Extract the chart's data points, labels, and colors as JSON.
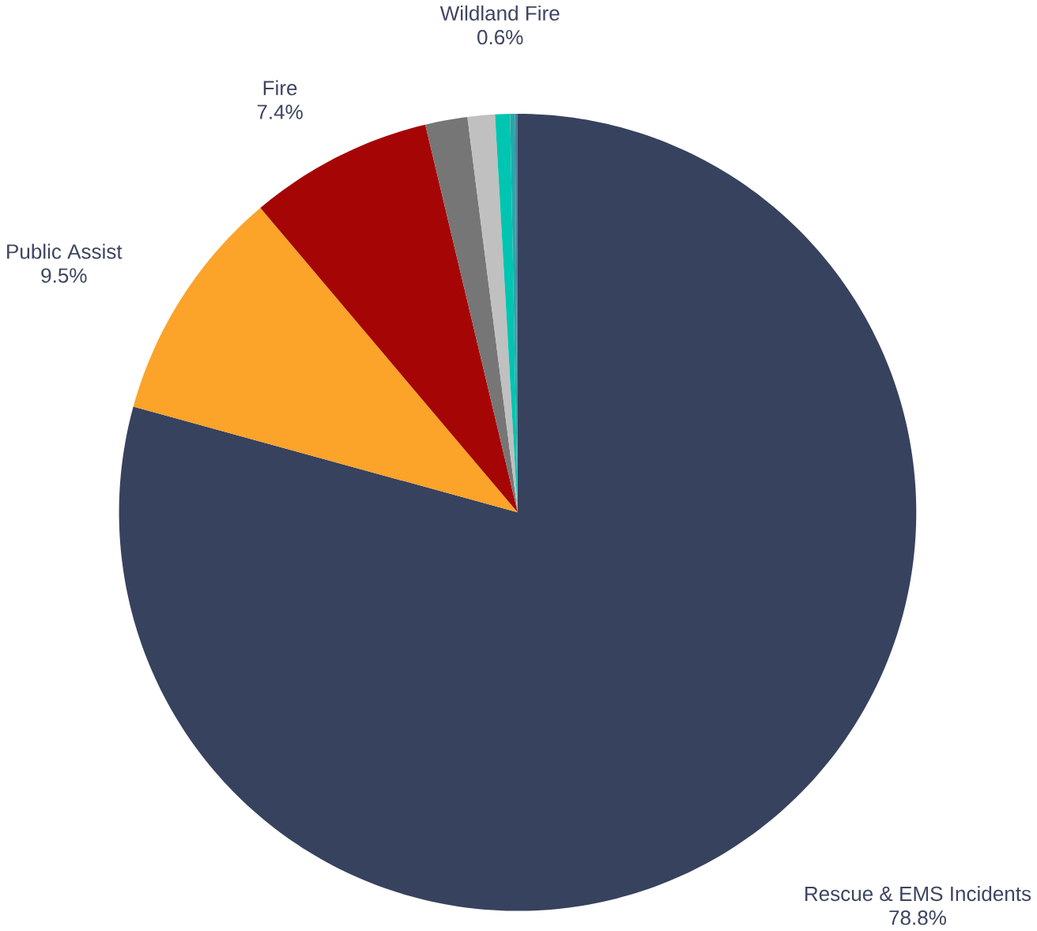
{
  "chart_data": {
    "type": "pie",
    "categories": [
      "Rescue & EMS Incidents",
      "Public Assist",
      "Fire",
      null,
      null,
      "Wildland Fire",
      null,
      null
    ],
    "values": [
      78.8,
      9.5,
      7.4,
      1.7,
      1.1,
      0.6,
      0.2,
      0.1
    ],
    "colors": [
      "#37425e",
      "#fca32a",
      "#a50505",
      "#767676",
      "#c0c0c0",
      "#00c5b0",
      "#2ba6a6",
      "#4d7da0"
    ],
    "value_labels": [
      "78.8%",
      "9.5%",
      "7.4%",
      null,
      null,
      "0.6%",
      null,
      null
    ]
  }
}
